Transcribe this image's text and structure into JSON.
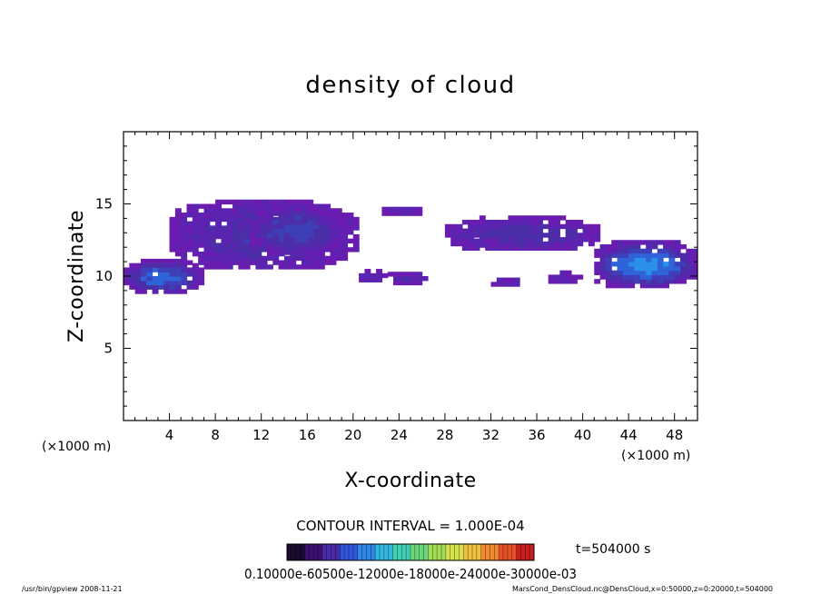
{
  "chart_data": {
    "type": "heatmap",
    "title": "density of cloud",
    "xlabel": "X-coordinate",
    "ylabel": "Z-coordinate",
    "xunit_left": "(×1000 m)",
    "xunit_right": "(×1000 m)",
    "xlim": [
      0,
      50
    ],
    "ylim": [
      0,
      20
    ],
    "xticks": [
      4,
      8,
      12,
      16,
      20,
      24,
      28,
      32,
      36,
      40,
      44,
      48
    ],
    "yticks": [
      5,
      10,
      15
    ],
    "contour_interval_label": "CONTOUR INTERVAL = 1.000E-04",
    "time_label": "t=504000 s",
    "colorbar_labels_text": "0.10000e-60500e-12000e-18000e-24000e-30000e-03",
    "colorbar_colors": [
      "#1a0a2e",
      "#3b0f6e",
      "#4a2aa8",
      "#2f56d8",
      "#2e86e6",
      "#32b8e0",
      "#3ed0b0",
      "#6cd67a",
      "#a2dc56",
      "#d6e04a",
      "#f0c040",
      "#f08a30",
      "#e85028",
      "#c81e1e"
    ],
    "regions": [
      {
        "name": "upper-layer-main",
        "xmin": 4,
        "xmax": 20.5,
        "zmin": 10.5,
        "zmax": 15.3,
        "level": 2
      },
      {
        "name": "upper-layer-core",
        "xmin": 11,
        "xmax": 19,
        "zmin": 11.5,
        "zmax": 14.8,
        "level": 3
      },
      {
        "name": "upper-layer-east",
        "xmin": 22.5,
        "xmax": 26,
        "zmin": 14.2,
        "zmax": 14.9,
        "level": 1
      },
      {
        "name": "mid-layer-east",
        "xmin": 28,
        "xmax": 41.5,
        "zmin": 11.8,
        "zmax": 14.0,
        "level": 2
      },
      {
        "name": "left-lower-cloud",
        "xmin": 0,
        "xmax": 7,
        "zmin": 8.8,
        "zmax": 11.1,
        "level": 4
      },
      {
        "name": "right-lower-cloud",
        "xmin": 41,
        "xmax": 50,
        "zmin": 9.2,
        "zmax": 12.4,
        "level": 5
      },
      {
        "name": "patch-20-24",
        "xmin": 20.5,
        "xmax": 22.8,
        "zmin": 9.6,
        "zmax": 10.4,
        "level": 1
      },
      {
        "name": "patch-23-26",
        "xmin": 23,
        "xmax": 26.2,
        "zmin": 9.4,
        "zmax": 10.3,
        "level": 1
      },
      {
        "name": "patch-32-34",
        "xmin": 32,
        "xmax": 34.5,
        "zmin": 9.3,
        "zmax": 9.8,
        "level": 1
      },
      {
        "name": "patch-37-40",
        "xmin": 37,
        "xmax": 39.8,
        "zmin": 9.5,
        "zmax": 10.2,
        "level": 1
      },
      {
        "name": "patch-29-32",
        "xmin": 29.5,
        "xmax": 32.3,
        "zmin": 12.0,
        "zmax": 12.6,
        "level": 1
      }
    ]
  },
  "footer": {
    "left": "/usr/bin/gpview  2008-11-21",
    "right": "MarsCond_DensCloud.nc@DensCloud,x=0:50000,z=0:20000,t=504000"
  }
}
